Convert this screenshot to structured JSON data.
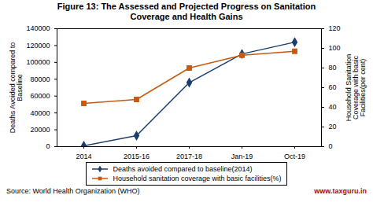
{
  "chart_data": {
    "type": "line",
    "title": "Figure 13: The Assessed and Projected Progress on Sanitation\nCoverage and Health Gains",
    "categories": [
      "2014",
      "2015-16",
      "2017-18",
      "Jan-19",
      "Oct-19"
    ],
    "series": [
      {
        "name": "Deaths avoided compared to baseline(2014)",
        "color": "#1a3e6e",
        "marker": "diamond",
        "values": [
          1000,
          13000,
          76000,
          110000,
          124000
        ]
      },
      {
        "name": "Household sanitation coverage with basic facilities(%)",
        "color": "#c55a11",
        "marker": "square",
        "axis": "y2",
        "values": [
          44,
          48,
          80,
          93,
          97
        ]
      }
    ],
    "ylabel": "Deaths Avoided compared to\nBaseline",
    "y2label": "Household Sanitation\nCoverage with basic\nFacilities(per cent)",
    "ylim": [
      0,
      140000
    ],
    "yticks": [
      0,
      20000,
      40000,
      60000,
      80000,
      100000,
      120000,
      140000
    ],
    "y2lim": [
      0,
      120
    ],
    "y2ticks": [
      0,
      20,
      40,
      60,
      80,
      100,
      120
    ],
    "grid": false,
    "legend": "lower center",
    "annotations": [
      {
        "text": "Source: World Health Organization (WHO)",
        "color": "#000000"
      },
      {
        "text": "www.taxguru.in",
        "color": "#c00000"
      }
    ]
  }
}
